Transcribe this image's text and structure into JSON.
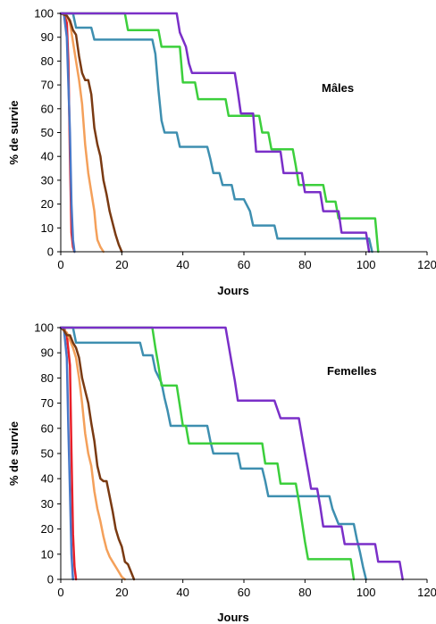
{
  "chart_data": [
    {
      "type": "line",
      "annotation": "Mâles",
      "xlabel": "Jours",
      "ylabel": "% de survie",
      "xlim": [
        0,
        120
      ],
      "ylim": [
        0,
        100
      ],
      "xticks": [
        "0",
        "20",
        "40",
        "60",
        "80",
        "100",
        "120"
      ],
      "yticks": [
        "0",
        "10",
        "20",
        "30",
        "40",
        "50",
        "60",
        "70",
        "80",
        "90",
        "100"
      ],
      "grid": false,
      "series": [
        {
          "color": "#e8202a",
          "points": [
            [
              0,
              100
            ],
            [
              1,
              100
            ],
            [
              2,
              96
            ],
            [
              2.5,
              80
            ],
            [
              3,
              40
            ],
            [
              3.5,
              8
            ],
            [
              4,
              2
            ],
            [
              4.5,
              0
            ]
          ]
        },
        {
          "color": "#4a78c8",
          "points": [
            [
              0,
              100
            ],
            [
              1,
              100
            ],
            [
              2,
              90
            ],
            [
              3,
              50
            ],
            [
              3.5,
              20
            ],
            [
              4,
              5
            ],
            [
              4.5,
              0
            ]
          ]
        },
        {
          "color": "#f4a05a",
          "points": [
            [
              0,
              100
            ],
            [
              2,
              99
            ],
            [
              3,
              96
            ],
            [
              4,
              88
            ],
            [
              5,
              80
            ],
            [
              6,
              72
            ],
            [
              7,
              62
            ],
            [
              8,
              45
            ],
            [
              9,
              33
            ],
            [
              10,
              25
            ],
            [
              11,
              17
            ],
            [
              11.5,
              10
            ],
            [
              12,
              5
            ],
            [
              13,
              2
            ],
            [
              14,
              0
            ]
          ]
        },
        {
          "color": "#7a3a12",
          "points": [
            [
              0,
              100
            ],
            [
              2,
              99
            ],
            [
              3,
              97
            ],
            [
              4,
              93
            ],
            [
              5,
              91
            ],
            [
              6,
              82
            ],
            [
              7,
              75
            ],
            [
              8,
              72
            ],
            [
              9,
              72
            ],
            [
              10,
              66
            ],
            [
              11,
              52
            ],
            [
              12,
              45
            ],
            [
              13,
              40
            ],
            [
              14,
              30
            ],
            [
              15,
              24
            ],
            [
              16,
              17
            ],
            [
              17,
              12
            ],
            [
              18,
              7
            ],
            [
              19,
              3
            ],
            [
              20,
              0
            ]
          ]
        },
        {
          "color": "#3e8fb0",
          "points": [
            [
              0,
              100
            ],
            [
              4,
              100
            ],
            [
              5,
              94
            ],
            [
              6,
              94
            ],
            [
              10,
              94
            ],
            [
              11,
              89
            ],
            [
              30,
              89
            ],
            [
              31,
              83
            ],
            [
              32,
              68
            ],
            [
              33,
              55
            ],
            [
              34,
              50
            ],
            [
              38,
              50
            ],
            [
              39,
              44
            ],
            [
              48,
              44
            ],
            [
              49,
              39
            ],
            [
              50,
              33
            ],
            [
              52,
              33
            ],
            [
              53,
              28
            ],
            [
              56,
              28
            ],
            [
              57,
              22
            ],
            [
              60,
              22
            ],
            [
              62,
              17
            ],
            [
              63,
              11
            ],
            [
              70,
              11
            ],
            [
              71,
              5.5
            ],
            [
              101,
              5.5
            ],
            [
              102,
              0
            ]
          ]
        },
        {
          "color": "#3ccf3c",
          "points": [
            [
              0,
              100
            ],
            [
              21,
              100
            ],
            [
              22,
              93
            ],
            [
              32,
              93
            ],
            [
              33,
              86
            ],
            [
              39,
              86
            ],
            [
              40,
              71
            ],
            [
              44,
              71
            ],
            [
              45,
              64
            ],
            [
              54,
              64
            ],
            [
              55,
              57
            ],
            [
              65,
              57
            ],
            [
              66,
              50
            ],
            [
              68,
              50
            ],
            [
              69,
              43
            ],
            [
              76,
              43
            ],
            [
              77,
              36
            ],
            [
              78,
              28
            ],
            [
              86,
              28
            ],
            [
              87,
              21
            ],
            [
              90,
              21
            ],
            [
              91,
              14
            ],
            [
              103,
              14
            ],
            [
              104,
              0
            ]
          ]
        },
        {
          "color": "#7a2fc8",
          "points": [
            [
              0,
              100
            ],
            [
              38,
              100
            ],
            [
              39,
              92
            ],
            [
              41,
              86
            ],
            [
              42,
              79
            ],
            [
              43,
              75
            ],
            [
              57,
              75
            ],
            [
              58,
              67
            ],
            [
              59,
              58
            ],
            [
              63,
              58
            ],
            [
              64,
              42
            ],
            [
              72,
              42
            ],
            [
              73,
              33
            ],
            [
              79,
              33
            ],
            [
              80,
              25
            ],
            [
              85,
              25
            ],
            [
              86,
              17
            ],
            [
              91,
              17
            ],
            [
              92,
              8
            ],
            [
              100,
              8
            ],
            [
              101,
              0
            ]
          ]
        }
      ]
    },
    {
      "type": "line",
      "annotation": "Femelles",
      "xlabel": "Jours",
      "ylabel": "% de survie",
      "xlim": [
        0,
        120
      ],
      "ylim": [
        0,
        100
      ],
      "xticks": [
        "0",
        "20",
        "40",
        "60",
        "80",
        "100",
        "120"
      ],
      "yticks": [
        "0",
        "10",
        "20",
        "30",
        "40",
        "50",
        "60",
        "70",
        "80",
        "90",
        "100"
      ],
      "grid": false,
      "series": [
        {
          "color": "#e8202a",
          "points": [
            [
              0,
              100
            ],
            [
              1,
              100
            ],
            [
              2,
              97
            ],
            [
              3,
              85
            ],
            [
              3.5,
              50
            ],
            [
              4,
              18
            ],
            [
              4.5,
              5
            ],
            [
              5,
              0
            ]
          ]
        },
        {
          "color": "#4a78c8",
          "points": [
            [
              0,
              100
            ],
            [
              1,
              100
            ],
            [
              2,
              88
            ],
            [
              2.5,
              60
            ],
            [
              3,
              35
            ],
            [
              3.5,
              10
            ],
            [
              4,
              0
            ]
          ]
        },
        {
          "color": "#f4a05a",
          "points": [
            [
              0,
              100
            ],
            [
              2,
              98
            ],
            [
              3,
              95
            ],
            [
              4,
              92
            ],
            [
              5,
              88
            ],
            [
              6,
              80
            ],
            [
              7,
              70
            ],
            [
              8,
              58
            ],
            [
              9,
              50
            ],
            [
              10,
              45
            ],
            [
              11,
              35
            ],
            [
              12,
              28
            ],
            [
              13,
              23
            ],
            [
              14,
              17
            ],
            [
              15,
              12
            ],
            [
              16,
              9
            ],
            [
              17,
              7
            ],
            [
              18,
              5
            ],
            [
              19,
              3
            ],
            [
              20,
              1
            ],
            [
              21,
              0
            ]
          ]
        },
        {
          "color": "#7a3a12",
          "points": [
            [
              0,
              100
            ],
            [
              1,
              99
            ],
            [
              2,
              97
            ],
            [
              3,
              97
            ],
            [
              4,
              94
            ],
            [
              5,
              92
            ],
            [
              6,
              88
            ],
            [
              7,
              80
            ],
            [
              8,
              75
            ],
            [
              9,
              70
            ],
            [
              10,
              62
            ],
            [
              11,
              55
            ],
            [
              12,
              45
            ],
            [
              13,
              40
            ],
            [
              14,
              39
            ],
            [
              15,
              39
            ],
            [
              16,
              33
            ],
            [
              17,
              27
            ],
            [
              18,
              20
            ],
            [
              19,
              16
            ],
            [
              20,
              13
            ],
            [
              21,
              7
            ],
            [
              22,
              6
            ],
            [
              23,
              3
            ],
            [
              24,
              0
            ]
          ]
        },
        {
          "color": "#3e8fb0",
          "points": [
            [
              0,
              100
            ],
            [
              4,
              100
            ],
            [
              5,
              94
            ],
            [
              26,
              94
            ],
            [
              27,
              89
            ],
            [
              30,
              89
            ],
            [
              31,
              83
            ],
            [
              33,
              78
            ],
            [
              34,
              72
            ],
            [
              35,
              67
            ],
            [
              36,
              61
            ],
            [
              48,
              61
            ],
            [
              49,
              55
            ],
            [
              50,
              50
            ],
            [
              58,
              50
            ],
            [
              59,
              44
            ],
            [
              66,
              44
            ],
            [
              67,
              39
            ],
            [
              68,
              33
            ],
            [
              88,
              33
            ],
            [
              89,
              28
            ],
            [
              91,
              22
            ],
            [
              96,
              22
            ],
            [
              97,
              16
            ],
            [
              98,
              11
            ],
            [
              99,
              5
            ],
            [
              100,
              0
            ]
          ]
        },
        {
          "color": "#3ccf3c",
          "points": [
            [
              0,
              100
            ],
            [
              30,
              100
            ],
            [
              31,
              92
            ],
            [
              32,
              85
            ],
            [
              33,
              77
            ],
            [
              38,
              77
            ],
            [
              39,
              69
            ],
            [
              40,
              61
            ],
            [
              41,
              61
            ],
            [
              42,
              54
            ],
            [
              66,
              54
            ],
            [
              67,
              46
            ],
            [
              71,
              46
            ],
            [
              72,
              38
            ],
            [
              77,
              38
            ],
            [
              78,
              31
            ],
            [
              79,
              23
            ],
            [
              80,
              15
            ],
            [
              81,
              8
            ],
            [
              95,
              8
            ],
            [
              96,
              0
            ]
          ]
        },
        {
          "color": "#7a2fc8",
          "points": [
            [
              0,
              100
            ],
            [
              54,
              100
            ],
            [
              55,
              93
            ],
            [
              56,
              86
            ],
            [
              57,
              79
            ],
            [
              58,
              71
            ],
            [
              70,
              71
            ],
            [
              72,
              64
            ],
            [
              78,
              64
            ],
            [
              79,
              57
            ],
            [
              80,
              50
            ],
            [
              81,
              43
            ],
            [
              82,
              36
            ],
            [
              84,
              36
            ],
            [
              85,
              29
            ],
            [
              86,
              21
            ],
            [
              92,
              21
            ],
            [
              93,
              14
            ],
            [
              103,
              14
            ],
            [
              104,
              7
            ],
            [
              111,
              7
            ],
            [
              112,
              0
            ]
          ]
        }
      ]
    }
  ]
}
